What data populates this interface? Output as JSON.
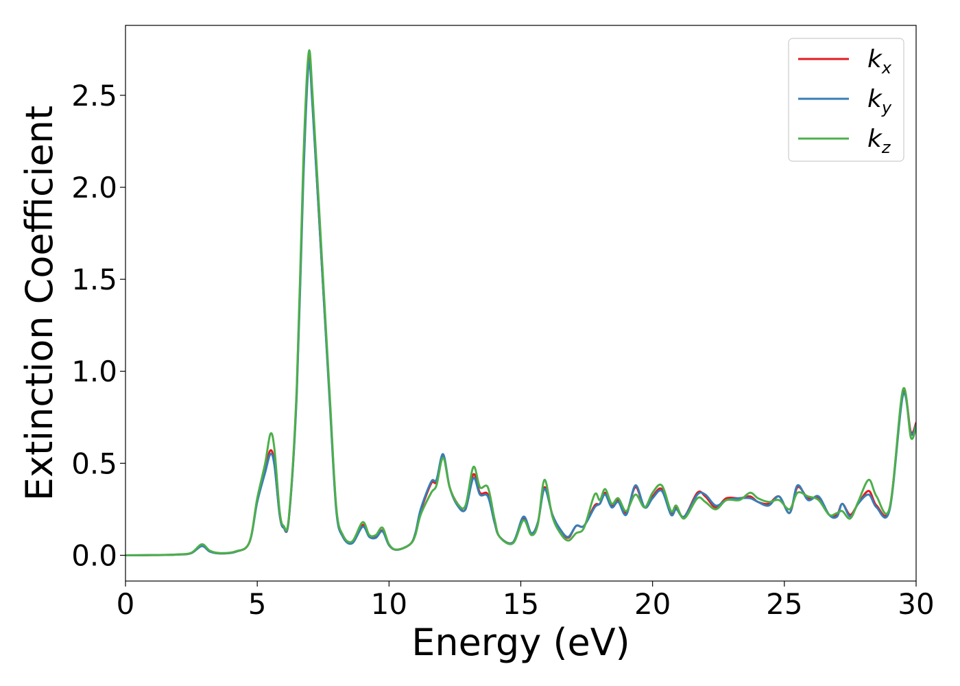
{
  "chart_data": {
    "type": "line",
    "title": "",
    "xlabel": "Energy (eV)",
    "ylabel": "Extinction Coefficient",
    "xlim": [
      0,
      30
    ],
    "ylim": [
      -0.14,
      2.88
    ],
    "xticks": [
      "0",
      "5",
      "10",
      "15",
      "20",
      "25",
      "30"
    ],
    "yticks": [
      "0.0",
      "0.5",
      "1.0",
      "1.5",
      "2.0",
      "2.5"
    ],
    "grid": false,
    "legend_position": "top-right",
    "series": [
      {
        "name": "k_x",
        "legend_base": "k",
        "legend_sub": "x",
        "color": "#e41a1c",
        "points": [
          [
            0,
            0.0
          ],
          [
            1,
            0.001
          ],
          [
            2,
            0.004
          ],
          [
            2.5,
            0.012
          ],
          [
            2.9,
            0.055
          ],
          [
            3.2,
            0.022
          ],
          [
            3.6,
            0.01
          ],
          [
            4.2,
            0.02
          ],
          [
            4.7,
            0.07
          ],
          [
            5.0,
            0.3
          ],
          [
            5.3,
            0.47
          ],
          [
            5.5,
            0.57
          ],
          [
            5.65,
            0.5
          ],
          [
            5.85,
            0.22
          ],
          [
            6.0,
            0.15
          ],
          [
            6.2,
            0.2
          ],
          [
            6.5,
            0.9
          ],
          [
            6.75,
            2.1
          ],
          [
            6.95,
            2.7
          ],
          [
            7.1,
            2.45
          ],
          [
            7.4,
            1.7
          ],
          [
            7.75,
            0.85
          ],
          [
            8.0,
            0.25
          ],
          [
            8.25,
            0.1
          ],
          [
            8.6,
            0.07
          ],
          [
            9.0,
            0.165
          ],
          [
            9.25,
            0.11
          ],
          [
            9.5,
            0.1
          ],
          [
            9.75,
            0.135
          ],
          [
            10.0,
            0.055
          ],
          [
            10.3,
            0.03
          ],
          [
            10.8,
            0.06
          ],
          [
            11.0,
            0.12
          ],
          [
            11.2,
            0.24
          ],
          [
            11.6,
            0.39
          ],
          [
            11.8,
            0.4
          ],
          [
            12.05,
            0.54
          ],
          [
            12.3,
            0.37
          ],
          [
            12.6,
            0.28
          ],
          [
            12.9,
            0.25
          ],
          [
            13.2,
            0.44
          ],
          [
            13.45,
            0.34
          ],
          [
            13.75,
            0.33
          ],
          [
            14.0,
            0.18
          ],
          [
            14.2,
            0.1
          ],
          [
            14.7,
            0.07
          ],
          [
            15.1,
            0.2
          ],
          [
            15.4,
            0.12
          ],
          [
            15.65,
            0.18
          ],
          [
            15.9,
            0.37
          ],
          [
            16.2,
            0.22
          ],
          [
            16.5,
            0.14
          ],
          [
            16.8,
            0.095
          ],
          [
            17.1,
            0.16
          ],
          [
            17.4,
            0.16
          ],
          [
            17.8,
            0.27
          ],
          [
            18.0,
            0.28
          ],
          [
            18.2,
            0.34
          ],
          [
            18.45,
            0.27
          ],
          [
            18.7,
            0.3
          ],
          [
            19.0,
            0.23
          ],
          [
            19.35,
            0.37
          ],
          [
            19.7,
            0.26
          ],
          [
            20.0,
            0.32
          ],
          [
            20.35,
            0.36
          ],
          [
            20.7,
            0.23
          ],
          [
            20.9,
            0.26
          ],
          [
            21.2,
            0.21
          ],
          [
            21.7,
            0.34
          ],
          [
            22.0,
            0.32
          ],
          [
            22.4,
            0.26
          ],
          [
            22.8,
            0.31
          ],
          [
            23.3,
            0.31
          ],
          [
            23.7,
            0.32
          ],
          [
            24.0,
            0.29
          ],
          [
            24.4,
            0.28
          ],
          [
            24.8,
            0.32
          ],
          [
            25.2,
            0.23
          ],
          [
            25.5,
            0.37
          ],
          [
            25.9,
            0.31
          ],
          [
            26.3,
            0.31
          ],
          [
            26.7,
            0.22
          ],
          [
            27.0,
            0.22
          ],
          [
            27.2,
            0.28
          ],
          [
            27.5,
            0.22
          ],
          [
            27.8,
            0.28
          ],
          [
            28.2,
            0.35
          ],
          [
            28.5,
            0.27
          ],
          [
            29.0,
            0.26
          ],
          [
            29.5,
            0.88
          ],
          [
            29.8,
            0.67
          ],
          [
            30.0,
            0.72
          ]
        ]
      },
      {
        "name": "k_y",
        "legend_base": "k",
        "legend_sub": "y",
        "color": "#377eb8",
        "points": [
          [
            0,
            0.0
          ],
          [
            1,
            0.001
          ],
          [
            2,
            0.004
          ],
          [
            2.5,
            0.012
          ],
          [
            2.9,
            0.05
          ],
          [
            3.2,
            0.02
          ],
          [
            3.6,
            0.01
          ],
          [
            4.2,
            0.02
          ],
          [
            4.7,
            0.07
          ],
          [
            5.0,
            0.29
          ],
          [
            5.3,
            0.45
          ],
          [
            5.5,
            0.55
          ],
          [
            5.65,
            0.49
          ],
          [
            5.85,
            0.22
          ],
          [
            6.0,
            0.15
          ],
          [
            6.2,
            0.2
          ],
          [
            6.5,
            0.88
          ],
          [
            6.75,
            2.05
          ],
          [
            6.95,
            2.67
          ],
          [
            7.1,
            2.43
          ],
          [
            7.4,
            1.7
          ],
          [
            7.75,
            0.83
          ],
          [
            8.0,
            0.24
          ],
          [
            8.25,
            0.1
          ],
          [
            8.6,
            0.065
          ],
          [
            9.0,
            0.155
          ],
          [
            9.25,
            0.1
          ],
          [
            9.5,
            0.095
          ],
          [
            9.75,
            0.13
          ],
          [
            10.0,
            0.055
          ],
          [
            10.3,
            0.03
          ],
          [
            10.8,
            0.06
          ],
          [
            11.0,
            0.12
          ],
          [
            11.2,
            0.25
          ],
          [
            11.6,
            0.4
          ],
          [
            11.8,
            0.41
          ],
          [
            12.05,
            0.55
          ],
          [
            12.3,
            0.37
          ],
          [
            12.6,
            0.27
          ],
          [
            12.9,
            0.25
          ],
          [
            13.2,
            0.42
          ],
          [
            13.45,
            0.33
          ],
          [
            13.75,
            0.32
          ],
          [
            14.0,
            0.18
          ],
          [
            14.2,
            0.1
          ],
          [
            14.7,
            0.07
          ],
          [
            15.1,
            0.21
          ],
          [
            15.4,
            0.12
          ],
          [
            15.65,
            0.18
          ],
          [
            15.9,
            0.36
          ],
          [
            16.2,
            0.22
          ],
          [
            16.5,
            0.14
          ],
          [
            16.8,
            0.1
          ],
          [
            17.1,
            0.16
          ],
          [
            17.4,
            0.16
          ],
          [
            17.8,
            0.26
          ],
          [
            18.0,
            0.28
          ],
          [
            18.2,
            0.33
          ],
          [
            18.45,
            0.26
          ],
          [
            18.7,
            0.29
          ],
          [
            19.0,
            0.22
          ],
          [
            19.35,
            0.38
          ],
          [
            19.7,
            0.26
          ],
          [
            20.0,
            0.31
          ],
          [
            20.35,
            0.35
          ],
          [
            20.7,
            0.22
          ],
          [
            20.9,
            0.25
          ],
          [
            21.2,
            0.21
          ],
          [
            21.7,
            0.33
          ],
          [
            22.0,
            0.33
          ],
          [
            22.4,
            0.27
          ],
          [
            22.8,
            0.3
          ],
          [
            23.3,
            0.31
          ],
          [
            23.7,
            0.31
          ],
          [
            24.0,
            0.29
          ],
          [
            24.4,
            0.27
          ],
          [
            24.8,
            0.32
          ],
          [
            25.2,
            0.23
          ],
          [
            25.5,
            0.38
          ],
          [
            25.9,
            0.3
          ],
          [
            26.3,
            0.32
          ],
          [
            26.7,
            0.22
          ],
          [
            27.0,
            0.21
          ],
          [
            27.2,
            0.28
          ],
          [
            27.5,
            0.21
          ],
          [
            27.8,
            0.28
          ],
          [
            28.2,
            0.33
          ],
          [
            28.5,
            0.26
          ],
          [
            29.0,
            0.25
          ],
          [
            29.5,
            0.87
          ],
          [
            29.8,
            0.66
          ],
          [
            30.0,
            0.71
          ]
        ]
      },
      {
        "name": "k_z",
        "legend_base": "k",
        "legend_sub": "z",
        "color": "#4daf4a",
        "points": [
          [
            0,
            0.0
          ],
          [
            1,
            0.001
          ],
          [
            2,
            0.005
          ],
          [
            2.5,
            0.014
          ],
          [
            2.9,
            0.06
          ],
          [
            3.2,
            0.025
          ],
          [
            3.6,
            0.012
          ],
          [
            4.2,
            0.022
          ],
          [
            4.7,
            0.07
          ],
          [
            5.0,
            0.31
          ],
          [
            5.3,
            0.5
          ],
          [
            5.5,
            0.66
          ],
          [
            5.65,
            0.58
          ],
          [
            5.85,
            0.24
          ],
          [
            6.0,
            0.16
          ],
          [
            6.2,
            0.21
          ],
          [
            6.5,
            0.92
          ],
          [
            6.75,
            2.15
          ],
          [
            6.95,
            2.73
          ],
          [
            7.1,
            2.5
          ],
          [
            7.4,
            1.75
          ],
          [
            7.75,
            0.87
          ],
          [
            8.0,
            0.26
          ],
          [
            8.25,
            0.11
          ],
          [
            8.6,
            0.075
          ],
          [
            9.0,
            0.18
          ],
          [
            9.25,
            0.11
          ],
          [
            9.5,
            0.11
          ],
          [
            9.75,
            0.15
          ],
          [
            10.0,
            0.06
          ],
          [
            10.3,
            0.03
          ],
          [
            10.8,
            0.06
          ],
          [
            11.0,
            0.11
          ],
          [
            11.2,
            0.22
          ],
          [
            11.6,
            0.34
          ],
          [
            11.8,
            0.38
          ],
          [
            12.05,
            0.53
          ],
          [
            12.3,
            0.37
          ],
          [
            12.6,
            0.28
          ],
          [
            12.9,
            0.27
          ],
          [
            13.2,
            0.48
          ],
          [
            13.45,
            0.37
          ],
          [
            13.75,
            0.37
          ],
          [
            14.0,
            0.2
          ],
          [
            14.2,
            0.1
          ],
          [
            14.7,
            0.065
          ],
          [
            15.1,
            0.19
          ],
          [
            15.4,
            0.11
          ],
          [
            15.65,
            0.17
          ],
          [
            15.9,
            0.41
          ],
          [
            16.2,
            0.21
          ],
          [
            16.5,
            0.12
          ],
          [
            16.8,
            0.08
          ],
          [
            17.1,
            0.12
          ],
          [
            17.4,
            0.15
          ],
          [
            17.8,
            0.33
          ],
          [
            18.0,
            0.3
          ],
          [
            18.2,
            0.36
          ],
          [
            18.45,
            0.28
          ],
          [
            18.7,
            0.31
          ],
          [
            19.0,
            0.24
          ],
          [
            19.35,
            0.33
          ],
          [
            19.7,
            0.26
          ],
          [
            20.0,
            0.34
          ],
          [
            20.35,
            0.38
          ],
          [
            20.7,
            0.24
          ],
          [
            20.9,
            0.27
          ],
          [
            21.2,
            0.2
          ],
          [
            21.7,
            0.31
          ],
          [
            22.0,
            0.29
          ],
          [
            22.4,
            0.25
          ],
          [
            22.8,
            0.3
          ],
          [
            23.3,
            0.3
          ],
          [
            23.7,
            0.34
          ],
          [
            24.0,
            0.31
          ],
          [
            24.4,
            0.29
          ],
          [
            24.8,
            0.3
          ],
          [
            25.2,
            0.25
          ],
          [
            25.5,
            0.34
          ],
          [
            25.9,
            0.32
          ],
          [
            26.3,
            0.3
          ],
          [
            26.7,
            0.22
          ],
          [
            27.0,
            0.23
          ],
          [
            27.2,
            0.24
          ],
          [
            27.5,
            0.2
          ],
          [
            27.8,
            0.29
          ],
          [
            28.2,
            0.41
          ],
          [
            28.5,
            0.32
          ],
          [
            29.0,
            0.26
          ],
          [
            29.5,
            0.9
          ],
          [
            29.8,
            0.64
          ],
          [
            30.0,
            0.7
          ]
        ]
      }
    ]
  }
}
